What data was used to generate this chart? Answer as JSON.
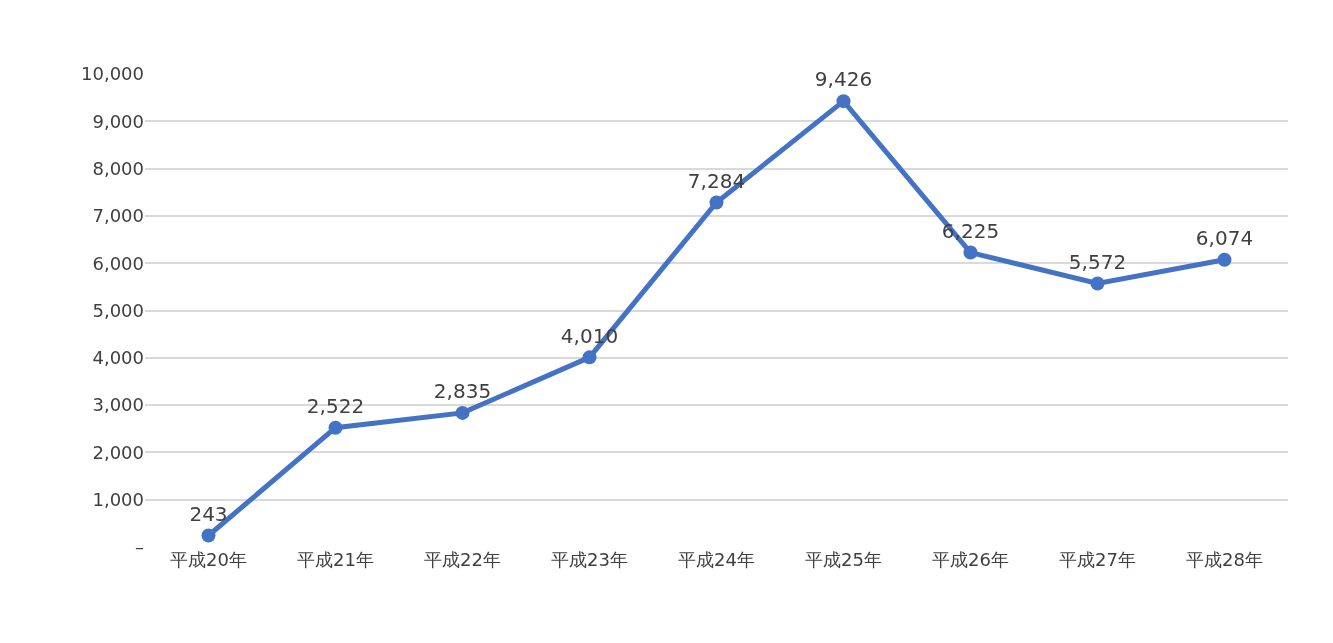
{
  "chart_data": {
    "type": "line",
    "categories": [
      "平成20年",
      "平成21年",
      "平成22年",
      "平成23年",
      "平成24年",
      "平成25年",
      "平成26年",
      "平成27年",
      "平成28年"
    ],
    "values": [
      243,
      2522,
      2835,
      4010,
      7284,
      9426,
      6225,
      5572,
      6074
    ],
    "color": "#4472c4",
    "ylim": [
      0,
      10000
    ],
    "yticks": [
      {
        "value": 0,
        "label": "–"
      },
      {
        "value": 1000,
        "label": "1,000"
      },
      {
        "value": 2000,
        "label": "2,000"
      },
      {
        "value": 3000,
        "label": "3,000"
      },
      {
        "value": 4000,
        "label": "4,000"
      },
      {
        "value": 5000,
        "label": "5,000"
      },
      {
        "value": 6000,
        "label": "6,000"
      },
      {
        "value": 7000,
        "label": "7,000"
      },
      {
        "value": 8000,
        "label": "8,000"
      },
      {
        "value": 9000,
        "label": "9,000"
      },
      {
        "value": 10000,
        "label": "10,000"
      }
    ],
    "value_labels": [
      "243",
      "2,522",
      "2,835",
      "4,010",
      "7,284",
      "9,426",
      "6,225",
      "5,572",
      "6,074"
    ],
    "grid": "y",
    "marker": "circle",
    "line_style": "solid",
    "legend": false
  }
}
